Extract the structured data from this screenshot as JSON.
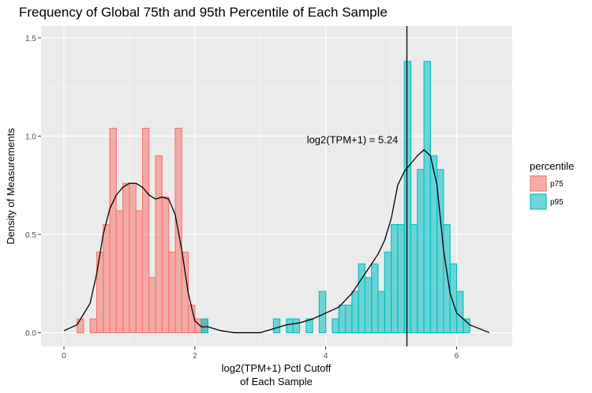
{
  "chart_data": {
    "type": "bar",
    "title": "Frequency of Global 75th and 95th Percentile of Each Sample",
    "xlabel_line1": "log2(TPM+1) Pctl Cutoff",
    "xlabel_line2": "of Each Sample",
    "ylabel": "Density of Measurements",
    "xlim": [
      -0.35,
      6.85
    ],
    "ylim": [
      -0.07,
      1.56
    ],
    "x_ticks": [
      0,
      2,
      4,
      6
    ],
    "x_tick_labels": [
      "0",
      "2",
      "4",
      "6"
    ],
    "y_ticks": [
      0.0,
      0.5,
      1.0,
      1.5
    ],
    "y_tick_labels": [
      "0.0",
      "0.5",
      "1.0",
      "1.5"
    ],
    "grid": true,
    "bin_width": 0.1,
    "legend": {
      "title": "percentile",
      "position": "right",
      "entries": [
        {
          "label": "p75",
          "fill": "#F8766D",
          "stroke": "#F8766D"
        },
        {
          "label": "p95",
          "fill": "#00BFC4",
          "stroke": "#00BFC4"
        }
      ]
    },
    "series": [
      {
        "name": "p75",
        "color": "#F8766D",
        "bins": [
          {
            "x": 0.2,
            "y": 0.07
          },
          {
            "x": 0.4,
            "y": 0.07
          },
          {
            "x": 0.5,
            "y": 0.41
          },
          {
            "x": 0.6,
            "y": 0.55
          },
          {
            "x": 0.7,
            "y": 1.04
          },
          {
            "x": 0.8,
            "y": 0.62
          },
          {
            "x": 0.9,
            "y": 0.76
          },
          {
            "x": 1.0,
            "y": 0.76
          },
          {
            "x": 1.1,
            "y": 0.62
          },
          {
            "x": 1.2,
            "y": 1.04
          },
          {
            "x": 1.3,
            "y": 0.28
          },
          {
            "x": 1.4,
            "y": 0.9
          },
          {
            "x": 1.5,
            "y": 0.69
          },
          {
            "x": 1.6,
            "y": 0.41
          },
          {
            "x": 1.7,
            "y": 1.04
          },
          {
            "x": 1.8,
            "y": 0.41
          },
          {
            "x": 1.9,
            "y": 0.14
          },
          {
            "x": 2.0,
            "y": 0.07
          },
          {
            "x": 2.1,
            "y": 0.07
          }
        ]
      },
      {
        "name": "p95",
        "color": "#00BFC4",
        "bins": [
          {
            "x": 2.1,
            "y": 0.07
          },
          {
            "x": 3.2,
            "y": 0.07
          },
          {
            "x": 3.4,
            "y": 0.07
          },
          {
            "x": 3.5,
            "y": 0.07
          },
          {
            "x": 3.7,
            "y": 0.07
          },
          {
            "x": 3.9,
            "y": 0.21
          },
          {
            "x": 4.1,
            "y": 0.07
          },
          {
            "x": 4.2,
            "y": 0.14
          },
          {
            "x": 4.3,
            "y": 0.14
          },
          {
            "x": 4.4,
            "y": 0.21
          },
          {
            "x": 4.5,
            "y": 0.35
          },
          {
            "x": 4.6,
            "y": 0.28
          },
          {
            "x": 4.7,
            "y": 0.35
          },
          {
            "x": 4.8,
            "y": 0.21
          },
          {
            "x": 4.9,
            "y": 0.41
          },
          {
            "x": 5.0,
            "y": 0.55
          },
          {
            "x": 5.1,
            "y": 0.55
          },
          {
            "x": 5.2,
            "y": 1.38
          },
          {
            "x": 5.3,
            "y": 0.55
          },
          {
            "x": 5.4,
            "y": 0.83
          },
          {
            "x": 5.5,
            "y": 1.38
          },
          {
            "x": 5.6,
            "y": 0.9
          },
          {
            "x": 5.7,
            "y": 0.83
          },
          {
            "x": 5.8,
            "y": 0.55
          },
          {
            "x": 5.9,
            "y": 0.35
          },
          {
            "x": 6.0,
            "y": 0.21
          },
          {
            "x": 6.1,
            "y": 0.07
          }
        ]
      }
    ],
    "density_curve": {
      "color": "#000000",
      "points": [
        [
          0.0,
          0.01
        ],
        [
          0.2,
          0.04
        ],
        [
          0.4,
          0.15
        ],
        [
          0.5,
          0.3
        ],
        [
          0.6,
          0.5
        ],
        [
          0.7,
          0.63
        ],
        [
          0.8,
          0.7
        ],
        [
          0.9,
          0.74
        ],
        [
          1.0,
          0.76
        ],
        [
          1.1,
          0.76
        ],
        [
          1.2,
          0.74
        ],
        [
          1.3,
          0.7
        ],
        [
          1.4,
          0.68
        ],
        [
          1.5,
          0.69
        ],
        [
          1.6,
          0.68
        ],
        [
          1.7,
          0.6
        ],
        [
          1.8,
          0.42
        ],
        [
          1.9,
          0.2
        ],
        [
          2.0,
          0.06
        ],
        [
          2.1,
          0.03
        ],
        [
          2.2,
          0.03
        ],
        [
          2.4,
          0.01
        ],
        [
          2.6,
          0.0
        ],
        [
          3.0,
          0.0
        ],
        [
          3.2,
          0.02
        ],
        [
          3.4,
          0.04
        ],
        [
          3.6,
          0.05
        ],
        [
          3.8,
          0.07
        ],
        [
          4.0,
          0.1
        ],
        [
          4.2,
          0.13
        ],
        [
          4.4,
          0.2
        ],
        [
          4.6,
          0.3
        ],
        [
          4.7,
          0.35
        ],
        [
          4.8,
          0.4
        ],
        [
          4.9,
          0.47
        ],
        [
          5.0,
          0.58
        ],
        [
          5.1,
          0.75
        ],
        [
          5.2,
          0.82
        ],
        [
          5.3,
          0.86
        ],
        [
          5.4,
          0.9
        ],
        [
          5.5,
          0.93
        ],
        [
          5.6,
          0.9
        ],
        [
          5.7,
          0.75
        ],
        [
          5.8,
          0.42
        ],
        [
          5.9,
          0.2
        ],
        [
          6.0,
          0.1
        ],
        [
          6.2,
          0.04
        ],
        [
          6.5,
          0.0
        ]
      ]
    },
    "reference_line": {
      "x": 5.24,
      "label": "log2(TPM+1) = 5.24",
      "label_y": 0.98
    }
  }
}
